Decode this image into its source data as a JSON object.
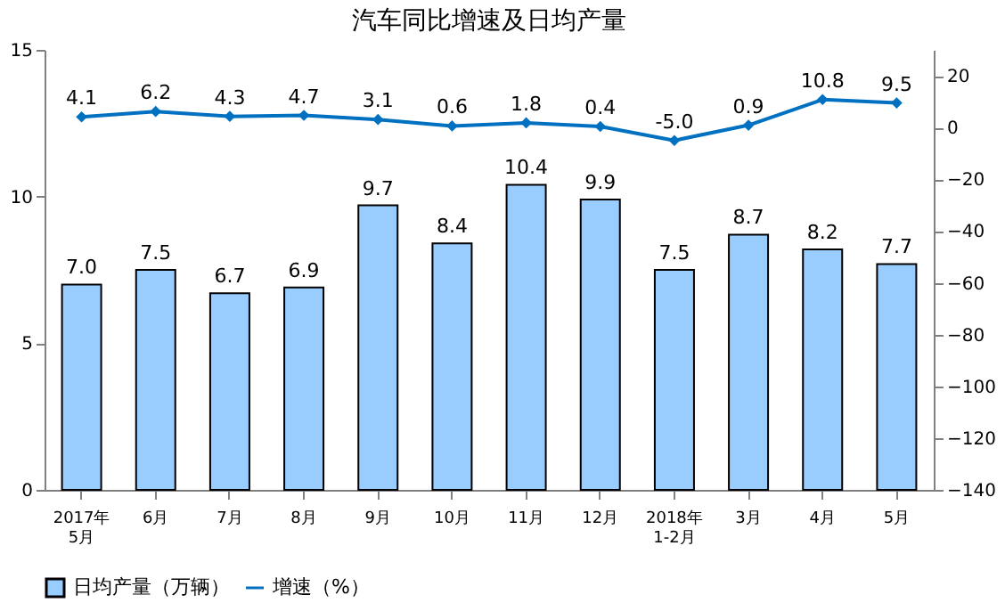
{
  "chart_data": {
    "type": "bar",
    "title": "汽车同比增速及日均产量",
    "categories": [
      "2017年\n5月",
      "6月",
      "7月",
      "8月",
      "9月",
      "10月",
      "11月",
      "12月",
      "2018年\n1-2月",
      "3月",
      "4月",
      "5月"
    ],
    "series": [
      {
        "name": "日均产量（万辆）",
        "color": "#99ccff",
        "values": [
          7.0,
          7.5,
          6.7,
          6.9,
          9.7,
          8.4,
          10.4,
          9.9,
          7.5,
          8.7,
          8.2,
          7.7
        ],
        "value_labels": [
          "7.0",
          "7.5",
          "6.7",
          "6.9",
          "9.7",
          "8.4",
          "10.4",
          "9.9",
          "7.5",
          "8.7",
          "8.2",
          "7.7"
        ]
      },
      {
        "name": "增速（%）",
        "type": "line",
        "axis": "y2",
        "color": "#0070c0",
        "marker": "diamond",
        "values": [
          4.1,
          6.2,
          4.3,
          4.7,
          3.1,
          0.6,
          1.8,
          0.4,
          -5.0,
          0.9,
          10.8,
          9.5
        ],
        "value_labels": [
          "4.1",
          "6.2",
          "4.3",
          "4.7",
          "3.1",
          "0.6",
          "1.8",
          "0.4",
          "-5.0",
          "0.9",
          "10.8",
          "9.5"
        ]
      }
    ],
    "ylim": [
      0,
      15
    ],
    "yticks": [
      0,
      5,
      10,
      15
    ],
    "y2lim": [
      -140,
      30
    ],
    "y2ticks": [
      -140,
      -120,
      -100,
      -80,
      -60,
      -40,
      -20,
      0,
      20
    ],
    "legend": "bottom",
    "grid": false
  }
}
